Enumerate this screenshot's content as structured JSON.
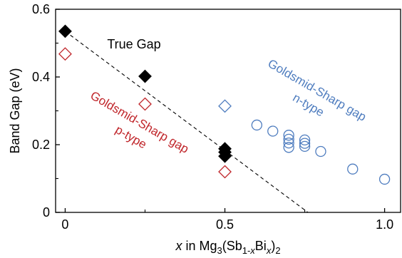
{
  "chart_data": {
    "type": "scatter",
    "xlabel": {
      "italic": "x",
      "rest": " in Mg",
      "sub1": "3",
      "mid": "(Sb",
      "sub2": "1-",
      "sub2i": "x",
      "mid2": "Bi",
      "sub3": "x",
      "end": ")",
      "sub4": "2"
    },
    "ylabel": "Band Gap (eV)",
    "xlim": [
      -0.03,
      1.05
    ],
    "ylim": [
      0,
      0.6
    ],
    "xticks": [
      0,
      0.5,
      1.0
    ],
    "xtick_labels": [
      "0",
      "0.5",
      "1.0"
    ],
    "yticks": [
      0,
      0.2,
      0.4,
      0.6
    ],
    "ytick_labels": [
      "0",
      "0.2",
      "0.4",
      "0.6"
    ],
    "grid": false,
    "legend": "none",
    "series": [
      {
        "name": "True Gap",
        "marker": "filled-diamond",
        "color": "#000000",
        "x": [
          0,
          0.25,
          0.5,
          0.5,
          0.5
        ],
        "y": [
          0.535,
          0.402,
          0.188,
          0.178,
          0.166
        ]
      },
      {
        "name": "Goldsmid-Sharp gap p-type",
        "marker": "open-diamond",
        "color": "#c0262b",
        "x": [
          0,
          0.25,
          0.5
        ],
        "y": [
          0.468,
          0.32,
          0.12
        ]
      },
      {
        "name": "Goldsmid-Sharp gap n-type (diamond)",
        "marker": "open-diamond",
        "color": "#4f7dbf",
        "x": [
          0.5
        ],
        "y": [
          0.314
        ]
      },
      {
        "name": "Goldsmid-Sharp gap n-type",
        "marker": "open-circle",
        "color": "#4f7dbf",
        "x": [
          0.6,
          0.65,
          0.7,
          0.7,
          0.7,
          0.7,
          0.75,
          0.75,
          0.75,
          0.8,
          0.9,
          1.0
        ],
        "y": [
          0.258,
          0.24,
          0.228,
          0.216,
          0.205,
          0.192,
          0.214,
          0.204,
          0.195,
          0.18,
          0.128,
          0.098
        ]
      }
    ],
    "fit_line": {
      "style": "dashed",
      "color": "#000000",
      "x": [
        0,
        0.76
      ],
      "y": [
        0.535,
        0
      ]
    },
    "annotations": [
      {
        "id": "true-gap",
        "lines": [
          "True Gap"
        ],
        "color": "#000000"
      },
      {
        "id": "p-type",
        "lines": [
          "Goldsmid-Sharp gap",
          "p-type"
        ],
        "color": "#c0262b"
      },
      {
        "id": "n-type",
        "lines": [
          "Goldsmid-Sharp gap",
          "n-type"
        ],
        "color": "#4f7dbf"
      }
    ]
  }
}
